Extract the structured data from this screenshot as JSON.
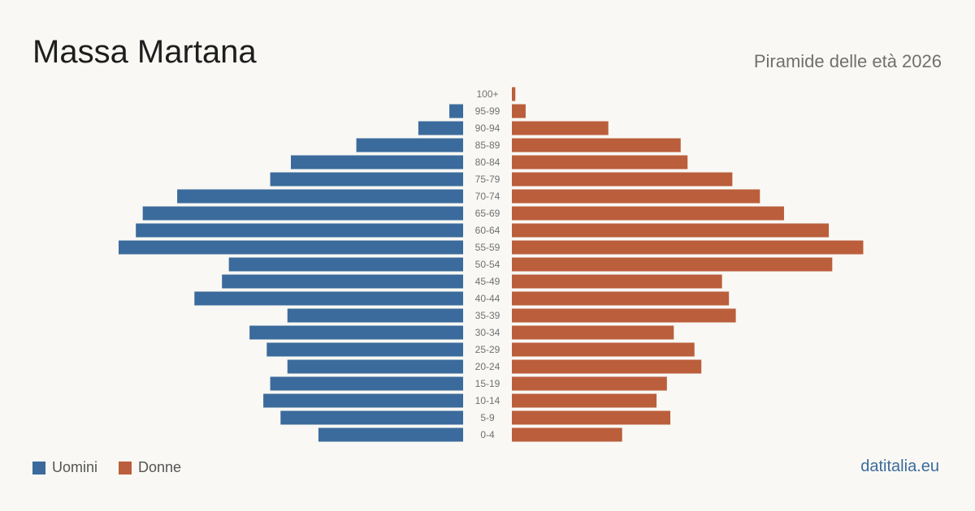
{
  "header": {
    "title": "Massa Martana",
    "subtitle": "Piramide delle età 2026"
  },
  "legend": {
    "men_label": "Uomini",
    "women_label": "Donne"
  },
  "footer": {
    "brand": "datitalia.eu"
  },
  "colors": {
    "men": "#3b6b9c",
    "women": "#bb5e3b",
    "background": "#f9f8f4"
  },
  "chart_data": {
    "type": "bar",
    "orientation": "horizontal-pyramid",
    "title": "Massa Martana",
    "subtitle": "Piramide delle età 2026",
    "categories": [
      "100+",
      "95-99",
      "90-94",
      "85-89",
      "80-84",
      "75-79",
      "70-74",
      "65-69",
      "60-64",
      "55-59",
      "50-54",
      "45-49",
      "40-44",
      "35-39",
      "30-34",
      "25-29",
      "20-24",
      "15-19",
      "10-14",
      "5-9",
      "0-4"
    ],
    "series": [
      {
        "name": "Uomini",
        "values": [
          0,
          4,
          13,
          31,
          50,
          56,
          83,
          93,
          95,
          100,
          68,
          70,
          78,
          51,
          62,
          57,
          51,
          56,
          58,
          53,
          42
        ]
      },
      {
        "name": "Donne",
        "values": [
          1,
          4,
          28,
          49,
          51,
          64,
          72,
          79,
          92,
          102,
          93,
          61,
          63,
          65,
          47,
          53,
          55,
          45,
          42,
          46,
          32
        ]
      }
    ],
    "grid": false,
    "legend_position": "bottom-left"
  }
}
